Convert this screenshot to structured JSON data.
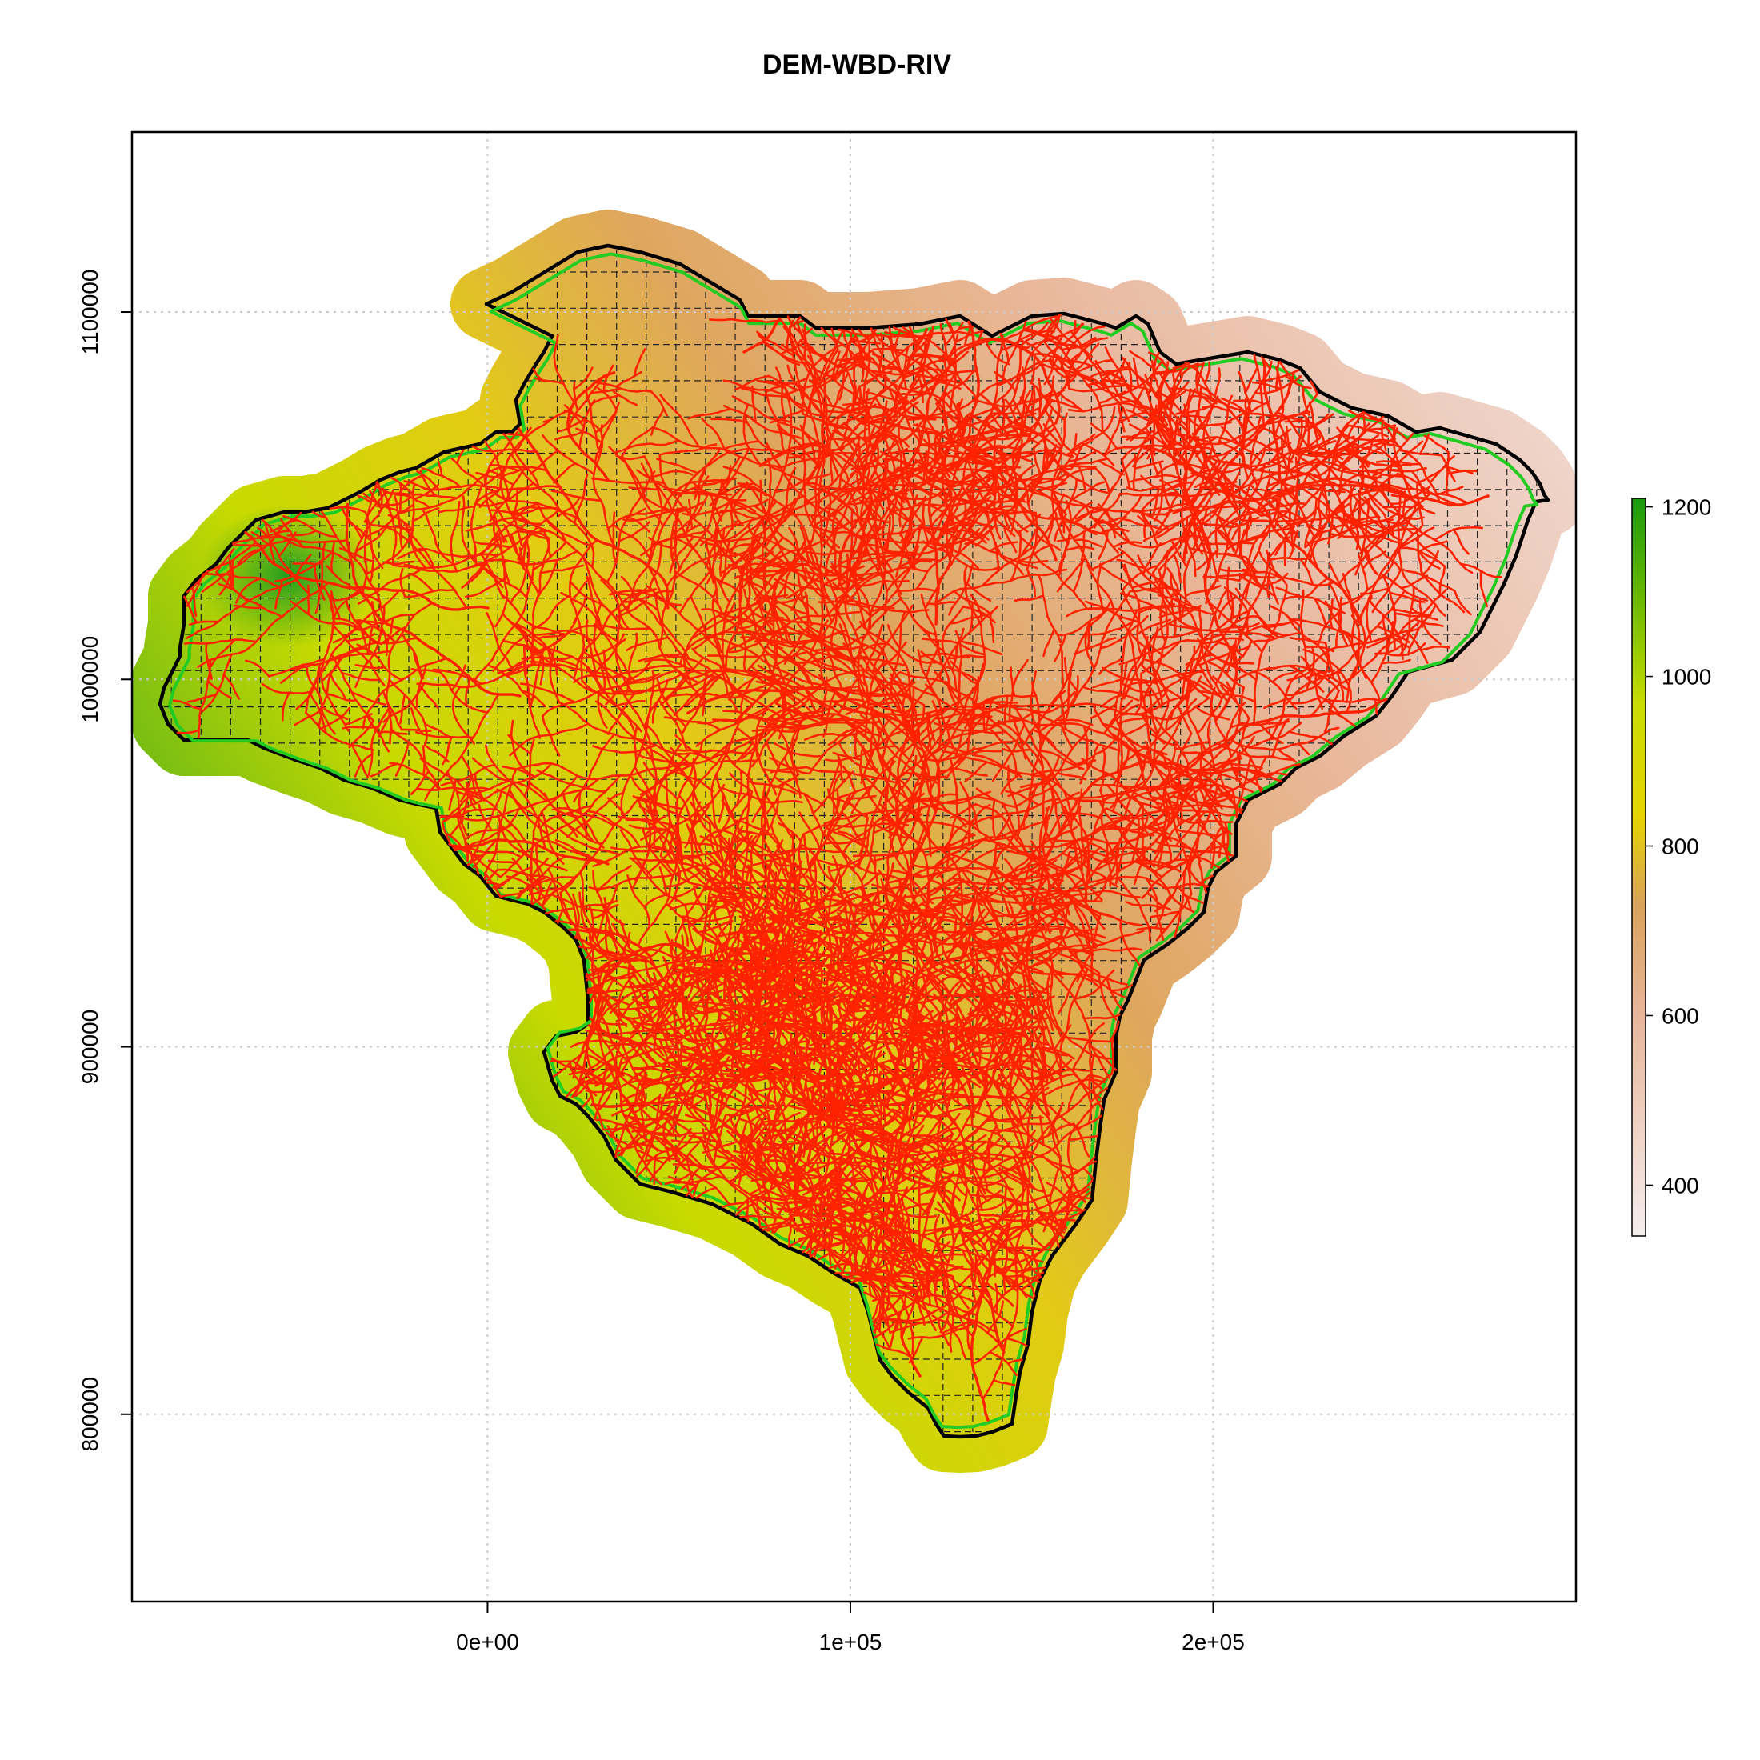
{
  "title": "DEM-WBD-RIV",
  "x_axis": {
    "ticks": [
      0,
      100000,
      200000
    ],
    "tick_labels": [
      "0e+00",
      "1e+05",
      "2e+05"
    ]
  },
  "y_axis": {
    "ticks": [
      800000,
      900000,
      1000000,
      1100000
    ],
    "tick_labels": [
      "800000",
      "900000",
      "1000000",
      "1100000"
    ]
  },
  "legend": {
    "ticks": [
      400,
      600,
      800,
      1000,
      1200
    ],
    "tick_labels": [
      "400",
      "600",
      "800",
      "1000",
      "1200"
    ],
    "range": [
      340,
      1210
    ],
    "colors": [
      "#f5eeee",
      "#e8b59a",
      "#d9a25a",
      "#e6d300",
      "#c9dd00",
      "#66b800",
      "#1a9a10"
    ],
    "placement": "right"
  },
  "colors": {
    "river": "#ff2200",
    "watershed_boundary": "#000000",
    "watershed_inner_boundary": "#22cc22",
    "mesh_grid": "#222222",
    "plot_grid": "#cccccc"
  },
  "layers": [
    "DEM",
    "WBD",
    "RIV"
  ]
}
